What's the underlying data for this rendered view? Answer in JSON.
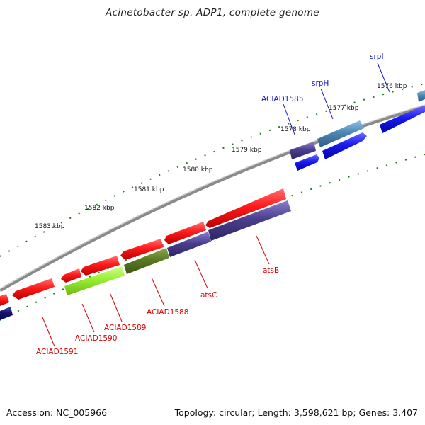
{
  "title": "Acinetobacter sp. ADP1, complete genome",
  "footer": {
    "accession": "Accession: NC_005966",
    "topology": "Topology: circular; Length: 3,598,621 bp; Genes: 3,407"
  },
  "colors": {
    "backbone": "#8a8a8a",
    "tick": "#1f7a1f",
    "gene_red": "#ee1111",
    "gene_blue": "#1a1aee",
    "gene_purple": "#4b3f8f",
    "gene_steel": "#4f86b3",
    "gene_lime": "#99ee33",
    "gene_olive": "#5c7a22",
    "label_red": "#dd0000",
    "label_blue": "#1111cc"
  },
  "scale_labels": [
    "1576 kbp",
    "1577 kbp",
    "1578 kbp",
    "1579 kbp",
    "1580 kbp",
    "1581 kbp",
    "1582 kbp",
    "1583 kbp"
  ],
  "genes": [
    {
      "name": "srpI",
      "strand": "+",
      "color": "blue"
    },
    {
      "name": "srpH",
      "strand": "+",
      "color": "steel"
    },
    {
      "name": "ACIAD1585",
      "strand": "+",
      "color": "purple"
    },
    {
      "name": "atsB",
      "strand": "-",
      "color": "purple"
    },
    {
      "name": "atsC",
      "strand": "-",
      "color": "purple"
    },
    {
      "name": "ACIAD1588",
      "strand": "-",
      "color": "olive"
    },
    {
      "name": "ACIAD1589",
      "strand": "-",
      "color": "lime"
    },
    {
      "name": "ACIAD1590",
      "strand": "-",
      "color": "red"
    },
    {
      "name": "ACIAD1591",
      "strand": "-",
      "color": "red"
    }
  ]
}
